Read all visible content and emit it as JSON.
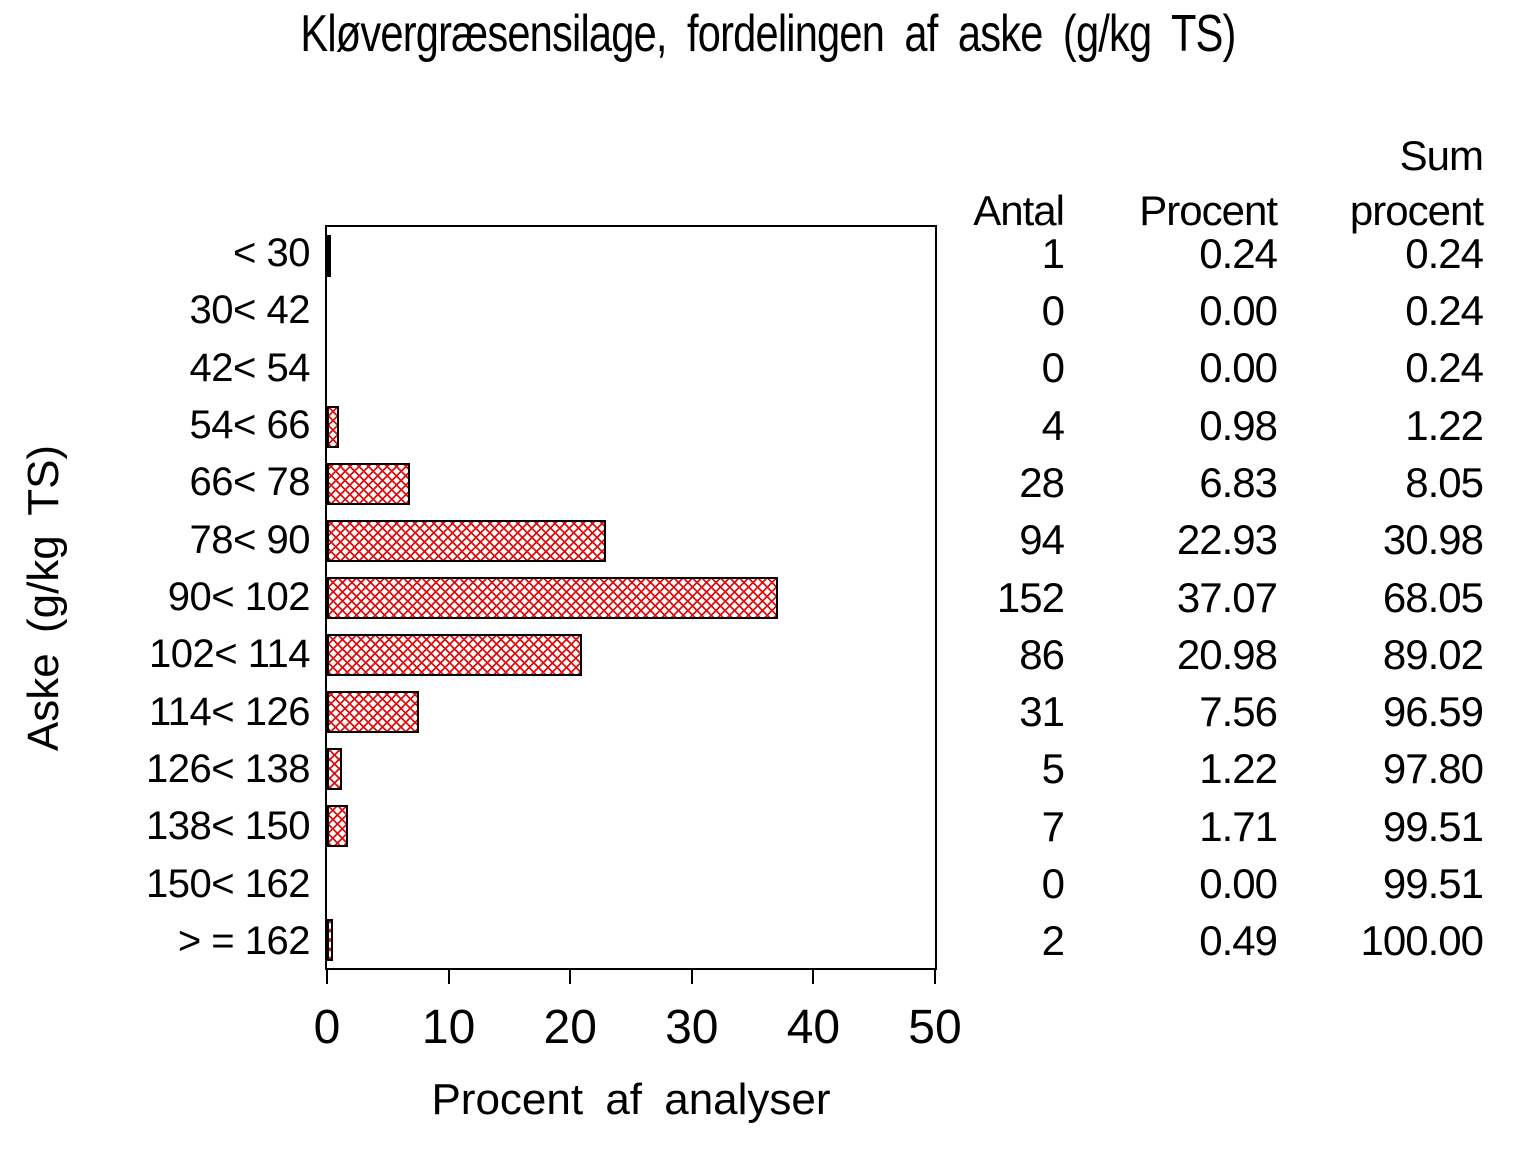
{
  "title": "Kløvergræsensilage, fordelingen af aske (g/kg TS)",
  "x_axis": {
    "label": "Procent af analyser",
    "min": 0,
    "max": 50,
    "ticks": [
      "0",
      "10",
      "20",
      "30",
      "40",
      "50"
    ]
  },
  "y_axis": {
    "label": "Aske (g/kg TS)"
  },
  "table": {
    "headers": {
      "antal": "Antal",
      "procent": "Procent",
      "sum_line1": "Sum",
      "sum_line2": "procent"
    },
    "rows": [
      {
        "label": "< 30",
        "antal": "1",
        "procent": "0.24",
        "sum": "0.24"
      },
      {
        "label": "30< 42",
        "antal": "0",
        "procent": "0.00",
        "sum": "0.24"
      },
      {
        "label": "42< 54",
        "antal": "0",
        "procent": "0.00",
        "sum": "0.24"
      },
      {
        "label": "54< 66",
        "antal": "4",
        "procent": "0.98",
        "sum": "1.22"
      },
      {
        "label": "66< 78",
        "antal": "28",
        "procent": "6.83",
        "sum": "8.05"
      },
      {
        "label": "78< 90",
        "antal": "94",
        "procent": "22.93",
        "sum": "30.98"
      },
      {
        "label": "90< 102",
        "antal": "152",
        "procent": "37.07",
        "sum": "68.05"
      },
      {
        "label": "102< 114",
        "antal": "86",
        "procent": "20.98",
        "sum": "89.02"
      },
      {
        "label": "114< 126",
        "antal": "31",
        "procent": "7.56",
        "sum": "96.59"
      },
      {
        "label": "126< 138",
        "antal": "5",
        "procent": "1.22",
        "sum": "97.80"
      },
      {
        "label": "138< 150",
        "antal": "7",
        "procent": "1.71",
        "sum": "99.51"
      },
      {
        "label": "150< 162",
        "antal": "0",
        "procent": "0.00",
        "sum": "99.51"
      },
      {
        "label": "> = 162",
        "antal": "2",
        "procent": "0.49",
        "sum": "100.00"
      }
    ]
  },
  "chart_data": {
    "type": "bar",
    "orientation": "horizontal",
    "title": "Kløvergræsensilage, fordelingen af aske (g/kg TS)",
    "xlabel": "Procent af analyser",
    "ylabel": "Aske (g/kg TS)",
    "xlim": [
      0,
      50
    ],
    "x_ticks": [
      0,
      10,
      20,
      30,
      40,
      50
    ],
    "grid": false,
    "legend": "none",
    "categories": [
      "< 30",
      "30< 42",
      "42< 54",
      "54< 66",
      "66< 78",
      "78< 90",
      "90< 102",
      "102< 114",
      "114< 126",
      "126< 138",
      "138< 150",
      "150< 162",
      "> = 162"
    ],
    "series": [
      {
        "name": "Antal",
        "values": [
          1,
          0,
          0,
          4,
          28,
          94,
          152,
          86,
          31,
          5,
          7,
          0,
          2
        ]
      },
      {
        "name": "Procent",
        "values": [
          0.24,
          0.0,
          0.0,
          0.98,
          6.83,
          22.93,
          37.07,
          20.98,
          7.56,
          1.22,
          1.71,
          0.0,
          0.49
        ]
      },
      {
        "name": "Sum procent",
        "values": [
          0.24,
          0.24,
          0.24,
          1.22,
          8.05,
          30.98,
          68.05,
          89.02,
          96.59,
          97.8,
          99.51,
          99.51,
          100.0
        ]
      }
    ],
    "bar_series": "Procent",
    "bar_fill_color": "#e01010",
    "bar_fill_style": "crosshatch",
    "bar_outline_color": "#000000"
  }
}
